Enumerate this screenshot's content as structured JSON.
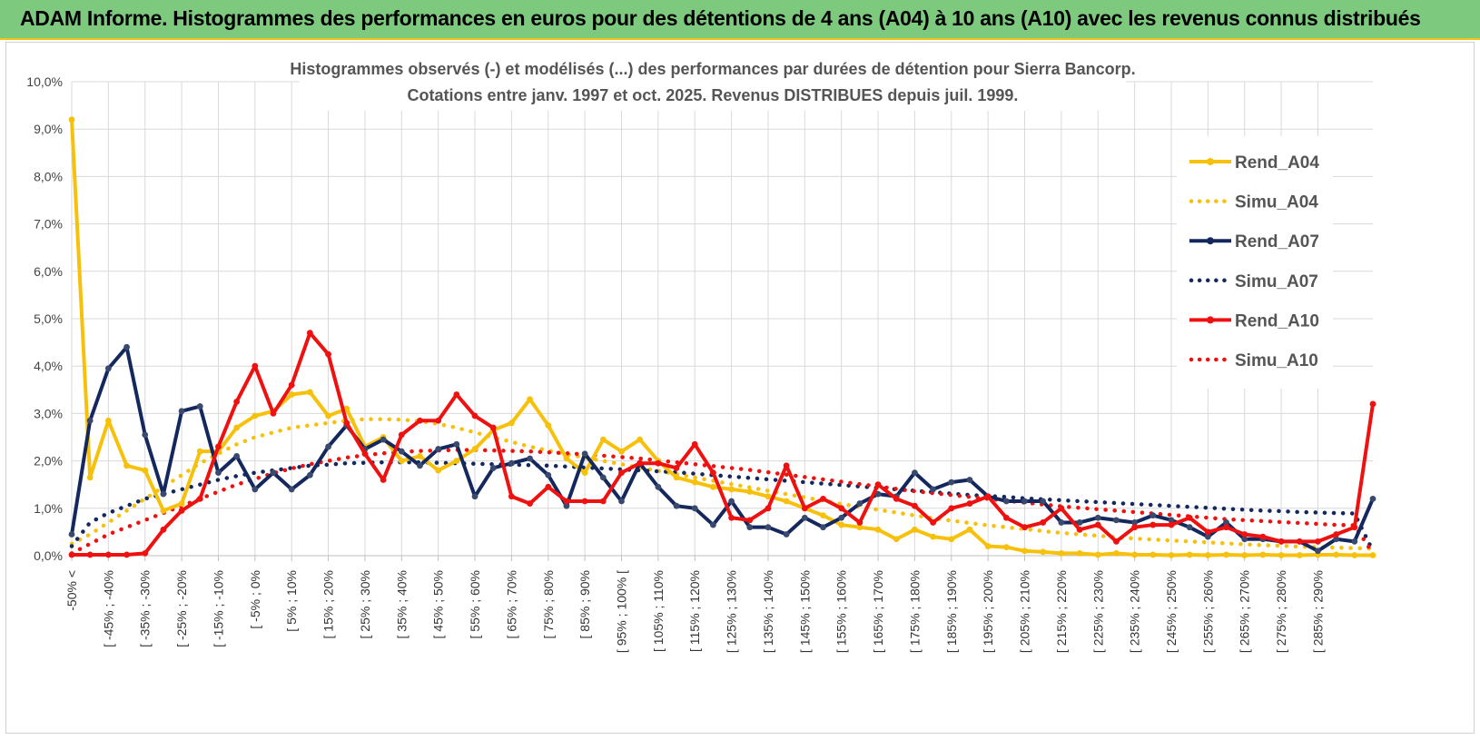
{
  "header": {
    "title": "ADAM Informe. Histogrammes des performances en euros pour des détentions de 4 ans (A04) à 10 ans (A10) avec les revenus connus distribués"
  },
  "colors": {
    "banner": "#7dca7e",
    "A04": "#f7c10b",
    "A07": "#14285e",
    "A10": "#ef1010",
    "grid": "#d9d9d9"
  },
  "chart_data": {
    "type": "line",
    "title": [
      "Histogrammes observés (-) et modélisés (...) des performances par durées de détention pour Sierra Bancorp.",
      "Cotations entre janv. 1997 et oct. 2025. Revenus DISTRIBUES depuis juil. 1999."
    ],
    "ylim": [
      0,
      10
    ],
    "y_ticks": [
      "0,0%",
      "1,0%",
      "2,0%",
      "3,0%",
      "4,0%",
      "5,0%",
      "6,0%",
      "7,0%",
      "8,0%",
      "9,0%",
      "10,0%"
    ],
    "x_tick_labels": [
      "-50% <",
      "[ -45% ; -40%",
      "[ -35% ; -30%",
      "[ -25% ; -20%",
      "[ -15% ; -10%",
      "[ -5% ; 0%",
      "[ 5% ; 10%",
      "[ 15% ; 20%",
      "[ 25% ; 30%",
      "[ 35% ; 40%",
      "[ 45% ; 50%",
      "[ 55% ; 60%",
      "[ 65% ; 70%",
      "[ 75% ; 80%",
      "[ 85% ; 90%",
      "[ 95% ; 100% [",
      "[ 105% ; 110%",
      "[ 115% ; 120%",
      "[ 125% ; 130%",
      "[ 135% ; 140%",
      "[ 145% ; 150%",
      "[ 155% ; 160%",
      "[ 165% ; 170%",
      "[ 175% ; 180%",
      "[ 185% ; 190%",
      "[ 195% ; 200%",
      "[ 205% ; 210%",
      "[ 215% ; 220%",
      "[ 225% ; 230%",
      "[ 235% ; 240%",
      "[ 245% ; 250%",
      "[ 255% ; 260%",
      "[ 265% ; 270%",
      "[ 275% ; 280%",
      "[ 285% ; 290%"
    ],
    "n_points": 72,
    "series": [
      {
        "name": "Rend_A04",
        "style": "solid",
        "color": "#f7c10b",
        "values": [
          9.2,
          1.65,
          2.85,
          1.9,
          1.8,
          0.95,
          1.1,
          2.2,
          2.2,
          2.7,
          2.95,
          3.05,
          3.4,
          3.45,
          2.95,
          3.1,
          2.3,
          2.5,
          2.0,
          2.1,
          1.8,
          2.0,
          2.25,
          2.65,
          2.8,
          3.3,
          2.75,
          2.05,
          1.75,
          2.45,
          2.2,
          2.45,
          2.0,
          1.65,
          1.55,
          1.45,
          1.4,
          1.35,
          1.25,
          1.15,
          1.0,
          0.85,
          0.65,
          0.6,
          0.55,
          0.35,
          0.55,
          0.4,
          0.35,
          0.55,
          0.2,
          0.18,
          0.1,
          0.08,
          0.05,
          0.05,
          0.02,
          0.05,
          0.02,
          0.02,
          0.01,
          0.02,
          0.01,
          0.02,
          0.01,
          0.02,
          0.01,
          0.01,
          0.02,
          0.02,
          0.01,
          0.01
        ]
      },
      {
        "name": "Simu_A04",
        "style": "dotted",
        "color": "#f7c10b",
        "values": [
          0.25,
          0.45,
          0.7,
          0.95,
          1.2,
          1.45,
          1.7,
          1.95,
          2.15,
          2.35,
          2.5,
          2.6,
          2.7,
          2.75,
          2.8,
          2.85,
          2.88,
          2.88,
          2.87,
          2.84,
          2.78,
          2.7,
          2.6,
          2.5,
          2.4,
          2.3,
          2.22,
          2.14,
          2.07,
          2.0,
          1.93,
          1.86,
          1.79,
          1.72,
          1.65,
          1.58,
          1.51,
          1.44,
          1.37,
          1.3,
          1.23,
          1.16,
          1.09,
          1.03,
          0.97,
          0.91,
          0.85,
          0.79,
          0.74,
          0.69,
          0.64,
          0.6,
          0.56,
          0.52,
          0.48,
          0.45,
          0.42,
          0.39,
          0.36,
          0.34,
          0.32,
          0.3,
          0.28,
          0.26,
          0.24,
          0.22,
          0.21,
          0.19,
          0.18,
          0.17,
          0.16,
          0.15
        ]
      },
      {
        "name": "Rend_A07",
        "style": "solid",
        "color": "#14285e",
        "values": [
          0.45,
          2.85,
          3.95,
          4.4,
          2.55,
          1.3,
          3.05,
          3.15,
          1.75,
          2.1,
          1.4,
          1.75,
          1.4,
          1.7,
          2.3,
          2.75,
          2.25,
          2.45,
          2.2,
          1.9,
          2.25,
          2.35,
          1.25,
          1.85,
          1.95,
          2.05,
          1.7,
          1.05,
          2.15,
          1.65,
          1.15,
          1.95,
          1.45,
          1.05,
          1.0,
          0.65,
          1.15,
          0.6,
          0.6,
          0.45,
          0.8,
          0.6,
          0.8,
          1.1,
          1.3,
          1.25,
          1.75,
          1.4,
          1.55,
          1.6,
          1.25,
          1.15,
          1.15,
          1.15,
          0.7,
          0.7,
          0.8,
          0.75,
          0.7,
          0.85,
          0.75,
          0.6,
          0.4,
          0.7,
          0.35,
          0.35,
          0.3,
          0.3,
          0.1,
          0.35,
          0.3,
          1.2
        ]
      },
      {
        "name": "Simu_A07",
        "style": "dotted",
        "color": "#14285e",
        "values": [
          0.2,
          0.7,
          0.9,
          1.05,
          1.2,
          1.3,
          1.4,
          1.5,
          1.6,
          1.68,
          1.75,
          1.8,
          1.85,
          1.9,
          1.92,
          1.95,
          1.96,
          1.97,
          1.97,
          1.97,
          1.96,
          1.95,
          1.94,
          1.93,
          1.92,
          1.91,
          1.9,
          1.88,
          1.86,
          1.84,
          1.82,
          1.8,
          1.78,
          1.76,
          1.73,
          1.7,
          1.67,
          1.64,
          1.61,
          1.58,
          1.55,
          1.52,
          1.49,
          1.46,
          1.43,
          1.4,
          1.37,
          1.34,
          1.31,
          1.28,
          1.26,
          1.24,
          1.21,
          1.19,
          1.17,
          1.15,
          1.13,
          1.11,
          1.09,
          1.07,
          1.05,
          1.03,
          1.01,
          0.99,
          0.97,
          0.95,
          0.94,
          0.92,
          0.91,
          0.9,
          0.89,
          0.1
        ]
      },
      {
        "name": "Rend_A10",
        "style": "solid",
        "color": "#ef1010",
        "values": [
          0.02,
          0.02,
          0.02,
          0.02,
          0.05,
          0.55,
          0.95,
          1.2,
          2.3,
          3.25,
          4.0,
          3.0,
          3.6,
          4.7,
          4.25,
          2.8,
          2.15,
          1.6,
          2.55,
          2.85,
          2.85,
          3.4,
          2.95,
          2.7,
          1.25,
          1.1,
          1.45,
          1.15,
          1.15,
          1.15,
          1.75,
          1.95,
          1.95,
          1.85,
          2.35,
          1.75,
          0.8,
          0.75,
          1.0,
          1.9,
          1.0,
          1.2,
          1.0,
          0.7,
          1.5,
          1.2,
          1.05,
          0.7,
          1.0,
          1.1,
          1.25,
          0.8,
          0.6,
          0.7,
          1.0,
          0.55,
          0.65,
          0.3,
          0.6,
          0.65,
          0.65,
          0.8,
          0.5,
          0.6,
          0.45,
          0.4,
          0.3,
          0.3,
          0.3,
          0.45,
          0.6,
          3.2
        ]
      },
      {
        "name": "Simu_A10",
        "style": "dotted",
        "color": "#ef1010",
        "values": [
          0.05,
          0.25,
          0.45,
          0.6,
          0.75,
          0.9,
          1.05,
          1.2,
          1.35,
          1.5,
          1.62,
          1.74,
          1.84,
          1.93,
          2.0,
          2.07,
          2.12,
          2.16,
          2.19,
          2.21,
          2.22,
          2.23,
          2.23,
          2.22,
          2.21,
          2.2,
          2.18,
          2.16,
          2.14,
          2.11,
          2.08,
          2.05,
          2.01,
          1.97,
          1.93,
          1.89,
          1.85,
          1.81,
          1.76,
          1.71,
          1.66,
          1.61,
          1.56,
          1.51,
          1.46,
          1.41,
          1.36,
          1.32,
          1.28,
          1.24,
          1.2,
          1.16,
          1.12,
          1.08,
          1.04,
          1.01,
          0.98,
          0.95,
          0.92,
          0.89,
          0.86,
          0.83,
          0.8,
          0.77,
          0.75,
          0.73,
          0.71,
          0.69,
          0.67,
          0.65,
          0.64,
          0.05
        ]
      }
    ],
    "legend": [
      "Rend_A04",
      "Simu_A04",
      "Rend_A07",
      "Simu_A07",
      "Rend_A10",
      "Simu_A10"
    ],
    "legend_position": "right"
  }
}
